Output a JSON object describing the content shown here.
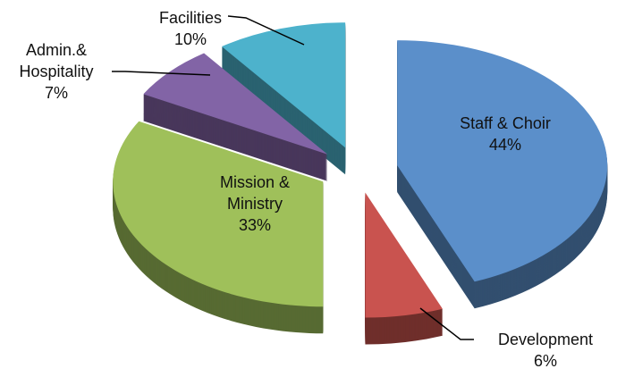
{
  "chart_data": {
    "type": "pie",
    "categories": [
      "Staff & Choir",
      "Development",
      "Mission &\nMinistry",
      "Admin.&\nHospitality",
      "Facilities"
    ],
    "values": [
      44,
      6,
      33,
      7,
      10
    ],
    "value_labels": [
      "44%",
      "6%",
      "33%",
      "7%",
      "10%"
    ],
    "colors": [
      "#5b8fca",
      "#c9534f",
      "#9fc05a",
      "#8264a6",
      "#4db2cc"
    ]
  }
}
